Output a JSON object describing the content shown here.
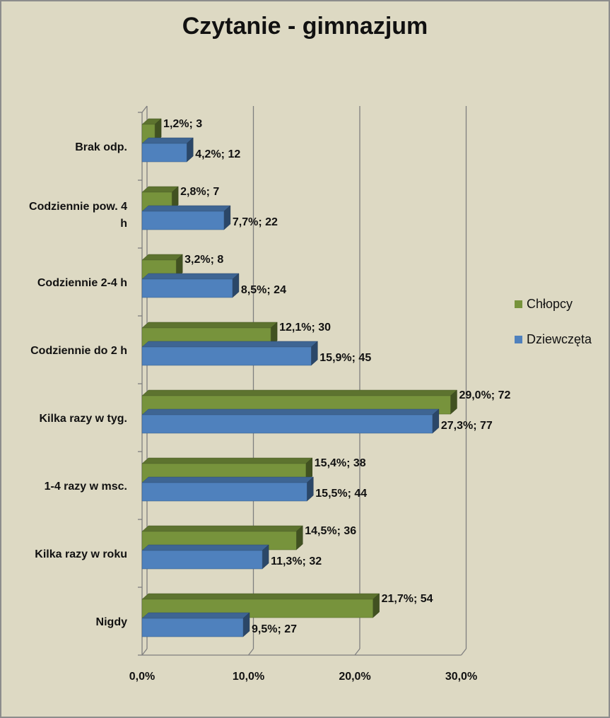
{
  "chart_data": {
    "type": "bar",
    "orientation": "horizontal",
    "style": "3d-clustered",
    "title": "Czytanie - gimnazjum",
    "categories": [
      "Brak odp.",
      "Codziennie pow. 4 h",
      "Codziennie 2-4 h",
      "Codziennie do 2 h",
      "Kilka razy w tyg.",
      "1-4 razy w msc.",
      "Kilka razy w roku",
      "Nigdy"
    ],
    "category_lines": [
      [
        "Brak odp."
      ],
      [
        "Codziennie pow. 4",
        "h"
      ],
      [
        "Codziennie 2-4 h"
      ],
      [
        "Codziennie do 2 h"
      ],
      [
        "Kilka razy w tyg."
      ],
      [
        "1-4 razy w msc."
      ],
      [
        "Kilka razy w roku"
      ],
      [
        "Nigdy"
      ]
    ],
    "series": [
      {
        "name": "Chłopcy",
        "color": "#77933c",
        "values": [
          1.2,
          2.8,
          3.2,
          12.1,
          29.0,
          15.4,
          14.5,
          21.7
        ],
        "labels": [
          "1,2%; 3",
          "2,8%; 7",
          "3,2%; 8",
          "12,1%; 30",
          "29,0%; 72",
          "15,4%; 38",
          "14,5%; 36",
          "21,7%; 54"
        ]
      },
      {
        "name": "Dziewczęta",
        "color": "#4f81bd",
        "values": [
          4.2,
          7.7,
          8.5,
          15.9,
          27.3,
          15.5,
          11.3,
          9.5
        ],
        "labels": [
          "4,2%; 12",
          "7,7%; 22",
          "8,5%; 24",
          "15,9%; 45",
          "27,3%; 77",
          "15,5%; 44",
          "11,3%; 32",
          "9,5%; 27"
        ]
      }
    ],
    "x_ticks": [
      "0,0%",
      "10,0%",
      "20,0%",
      "30,0%"
    ],
    "xlim": [
      0,
      30
    ],
    "grid": true,
    "legend_position": "right"
  }
}
